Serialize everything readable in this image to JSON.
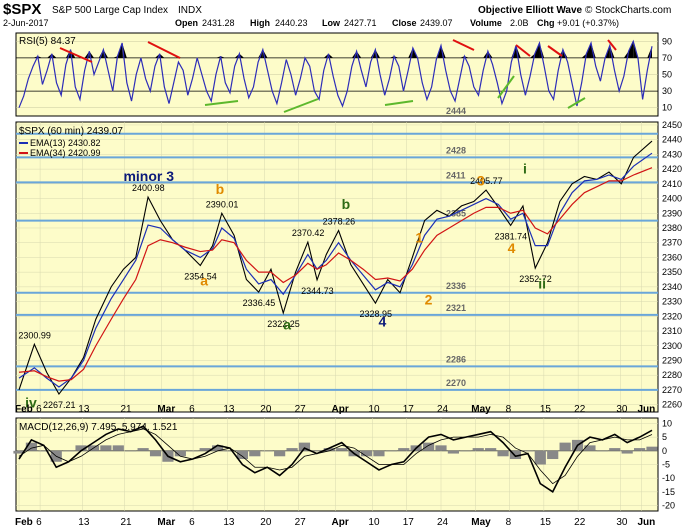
{
  "header": {
    "symbol": "$SPX",
    "description": "S&P 500 Large Cap Index",
    "exchange": "INDX",
    "chart_title": "Objective Elliott Wave",
    "copyright": "© StockCharts.com",
    "date": "2-Jun-2017",
    "open_label": "Open",
    "open": "2431.28",
    "high_label": "High",
    "high": "2440.23",
    "low_label": "Low",
    "low": "2427.71",
    "close_label": "Close",
    "close": "2439.07",
    "volume_label": "Volume",
    "volume": "2.0B",
    "chg_label": "Chg",
    "chg": "+9.01 (+0.37%)"
  },
  "colors": {
    "panel_bg": "#fdfcc9",
    "price": "#000000",
    "ema13": "#1c2fb5",
    "ema34": "#d11515",
    "rsi": "#2d2db8",
    "level_line": "#6aa6d9",
    "wave_orange": "#e08a00",
    "wave_green": "#2e6b15",
    "wave_navy": "#0c1a7a",
    "divergence_red": "#e01010",
    "divergence_green": "#5cb82c"
  },
  "chart_data": [
    {
      "type": "line",
      "panel": "rsi",
      "legend": "RSI(5) 84.37",
      "ylim": [
        0,
        100
      ],
      "y_ticks": [
        10,
        30,
        50,
        70,
        90
      ],
      "overbought": 70,
      "oversold": 30,
      "series": [
        {
          "name": "RSI(5)",
          "values": [
            10,
            24,
            45,
            60,
            72,
            38,
            55,
            75,
            40,
            25,
            62,
            80,
            35,
            20,
            55,
            78,
            50,
            65,
            80,
            55,
            30,
            72,
            88,
            40,
            18,
            50,
            70,
            45,
            30,
            60,
            75,
            35,
            15,
            40,
            65,
            55,
            25,
            45,
            70,
            50,
            30,
            18,
            50,
            72,
            40,
            28,
            60,
            75,
            45,
            22,
            35,
            65,
            80,
            55,
            30,
            15,
            40,
            68,
            50,
            25,
            45,
            70,
            60,
            30,
            20,
            55,
            75,
            48,
            25,
            12,
            30,
            60,
            78,
            55,
            35,
            65,
            80,
            50,
            25,
            45,
            72,
            60,
            30,
            55,
            82,
            70,
            40,
            20,
            35,
            68,
            85,
            55,
            30,
            18,
            45,
            72,
            60,
            35,
            25,
            55,
            78,
            62,
            40,
            15,
            30,
            65,
            85,
            50,
            25,
            48,
            75,
            88,
            60,
            30,
            20,
            55,
            80,
            65,
            38,
            12,
            40,
            75,
            88,
            60,
            42,
            70,
            85,
            55,
            30,
            48,
            78,
            90,
            70,
            20,
            55,
            84
          ]
        }
      ],
      "annotations": [
        "2444"
      ]
    },
    {
      "type": "line",
      "panel": "price",
      "title": "$SPX (60 min) 2439.07",
      "ylim": [
        2255,
        2452
      ],
      "y_ticks": [
        2260,
        2270,
        2280,
        2290,
        2300,
        2310,
        2320,
        2330,
        2340,
        2350,
        2360,
        2370,
        2380,
        2390,
        2400,
        2410,
        2420,
        2430,
        2440,
        2450
      ],
      "x_ticks": [
        "Feb",
        "6",
        "13",
        "21",
        "Mar",
        "6",
        "13",
        "20",
        "27",
        "Apr",
        "10",
        "17",
        "24",
        "May",
        "8",
        "15",
        "22",
        "30",
        "Jun"
      ],
      "x": [
        0,
        5,
        9,
        13,
        17,
        21,
        25,
        30,
        34,
        38,
        42,
        46,
        50,
        54,
        59,
        63,
        66,
        70,
        74,
        78,
        82,
        86,
        90,
        94,
        97,
        100,
        104,
        108,
        112,
        116,
        120,
        124,
        128,
        132,
        136,
        140,
        144,
        148,
        152,
        156,
        160,
        164,
        168,
        172,
        176,
        180,
        184,
        188,
        192,
        196,
        200,
        206
      ],
      "series": [
        {
          "name": "$SPX",
          "values": [
            2270,
            2300.99,
            2282,
            2267.21,
            2278,
            2292,
            2318,
            2340,
            2352,
            2360,
            2400.98,
            2385,
            2372,
            2365,
            2354.54,
            2368,
            2390.01,
            2375,
            2345,
            2336.45,
            2352,
            2322.25,
            2350,
            2370.42,
            2344.73,
            2362,
            2378.26,
            2355,
            2342,
            2328.95,
            2345,
            2336,
            2360,
            2385,
            2392,
            2388,
            2395,
            2398,
            2405.77,
            2394,
            2381.74,
            2395,
            2352.72,
            2370,
            2398,
            2410,
            2415,
            2413,
            2418,
            2410,
            2428,
            2439.07
          ]
        },
        {
          "name": "EMA(13) 2430.82",
          "values": [
            2278,
            2285,
            2278,
            2272,
            2278,
            2290,
            2312,
            2332,
            2345,
            2358,
            2382,
            2380,
            2372,
            2365,
            2360,
            2366,
            2380,
            2373,
            2352,
            2342,
            2345,
            2335,
            2348,
            2362,
            2352,
            2358,
            2370,
            2358,
            2348,
            2338,
            2343,
            2340,
            2355,
            2375,
            2386,
            2388,
            2392,
            2396,
            2400,
            2396,
            2386,
            2390,
            2368,
            2368,
            2390,
            2404,
            2412,
            2413,
            2416,
            2413,
            2422,
            2430.82
          ]
        },
        {
          "name": "EMA(34) 2420.99",
          "values": [
            2282,
            2283,
            2279,
            2276,
            2277,
            2284,
            2300,
            2318,
            2332,
            2345,
            2368,
            2372,
            2370,
            2367,
            2364,
            2365,
            2372,
            2370,
            2358,
            2350,
            2350,
            2343,
            2348,
            2356,
            2352,
            2355,
            2363,
            2358,
            2352,
            2345,
            2346,
            2344,
            2352,
            2365,
            2375,
            2380,
            2385,
            2390,
            2394,
            2394,
            2390,
            2392,
            2380,
            2376,
            2386,
            2396,
            2404,
            2408,
            2412,
            2412,
            2416,
            2420.99
          ]
        }
      ],
      "levels": [
        2444,
        2428,
        2411,
        2385,
        2336,
        2321,
        2286,
        2270
      ],
      "level_labels": [
        "2444",
        "2428",
        "2411",
        "2385",
        "2336",
        "2321",
        "2286",
        "2270"
      ],
      "point_labels": [
        {
          "x": 5,
          "y": 2300.99,
          "text": "2300.99"
        },
        {
          "x": 13,
          "y": 2267.21,
          "text": "2267.21"
        },
        {
          "x": 42,
          "y": 2400.98,
          "text": "2400.98"
        },
        {
          "x": 66,
          "y": 2390.01,
          "text": "2390.01"
        },
        {
          "x": 59,
          "y": 2354.54,
          "text": "2354.54"
        },
        {
          "x": 78,
          "y": 2336.45,
          "text": "2336.45"
        },
        {
          "x": 86,
          "y": 2322.25,
          "text": "2322.25"
        },
        {
          "x": 94,
          "y": 2370.42,
          "text": "2370.42"
        },
        {
          "x": 97,
          "y": 2344.73,
          "text": "2344.73"
        },
        {
          "x": 104,
          "y": 2378.26,
          "text": "2378.26"
        },
        {
          "x": 116,
          "y": 2328.95,
          "text": "2328.95"
        },
        {
          "x": 152,
          "y": 2405.77,
          "text": "2405.77"
        },
        {
          "x": 160,
          "y": 2381.74,
          "text": "2381.74"
        },
        {
          "x": 168,
          "y": 2352.72,
          "text": "2352.72"
        }
      ],
      "wave_labels": [
        {
          "text": "iv",
          "x": 2,
          "y": 2258,
          "color": "wave_green"
        },
        {
          "text": "minor 3",
          "x": 34,
          "y": 2412,
          "color": "wave_navy"
        },
        {
          "text": "b",
          "x": 64,
          "y": 2403,
          "color": "wave_orange"
        },
        {
          "text": "a",
          "x": 59,
          "y": 2341,
          "color": "wave_orange"
        },
        {
          "text": "a",
          "x": 86,
          "y": 2311,
          "color": "wave_green"
        },
        {
          "text": "b",
          "x": 105,
          "y": 2393,
          "color": "wave_green"
        },
        {
          "text": "4",
          "x": 117,
          "y": 2313,
          "color": "wave_navy"
        },
        {
          "text": "1",
          "x": 129,
          "y": 2370,
          "color": "wave_orange"
        },
        {
          "text": "2",
          "x": 132,
          "y": 2328,
          "color": "wave_orange"
        },
        {
          "text": "3",
          "x": 149,
          "y": 2409,
          "color": "wave_orange"
        },
        {
          "text": "4",
          "x": 159,
          "y": 2363,
          "color": "wave_orange"
        },
        {
          "text": "i",
          "x": 164,
          "y": 2417,
          "color": "wave_green"
        },
        {
          "text": "ii",
          "x": 169,
          "y": 2339,
          "color": "wave_green"
        }
      ]
    },
    {
      "type": "line",
      "panel": "macd",
      "legend": "MACD(12,26,9) 7.495, 5.974, 1.521",
      "ylim": [
        -22,
        12
      ],
      "y_ticks": [
        -20,
        -15,
        -10,
        -5,
        0,
        5,
        10
      ],
      "series": [
        {
          "name": "MACD",
          "values": [
            -3,
            4,
            2,
            -6,
            -4,
            0,
            3,
            6,
            8,
            7,
            9,
            4,
            -2,
            -4,
            -3,
            -1,
            2,
            1,
            -5,
            -8,
            -6,
            -9,
            -5,
            1,
            -1,
            1,
            3,
            -1,
            -4,
            -7,
            -5,
            -4,
            1,
            5,
            6,
            4,
            5,
            6,
            7,
            3,
            -2,
            -1,
            -12,
            -15,
            -6,
            2,
            5,
            4,
            6,
            3,
            5,
            7.495
          ]
        },
        {
          "name": "Signal",
          "values": [
            -2,
            1,
            2,
            -2,
            -4,
            -2,
            1,
            4,
            6,
            7,
            8,
            6,
            2,
            -2,
            -3,
            -2,
            0,
            1,
            -2,
            -6,
            -6,
            -7,
            -6,
            -2,
            -1,
            0,
            2,
            1,
            -2,
            -5,
            -5,
            -5,
            -1,
            2,
            4,
            5,
            5,
            5,
            6,
            5,
            1,
            -1,
            -7,
            -12,
            -9,
            -2,
            3,
            4,
            5,
            4,
            4,
            5.974
          ]
        }
      ]
    }
  ]
}
